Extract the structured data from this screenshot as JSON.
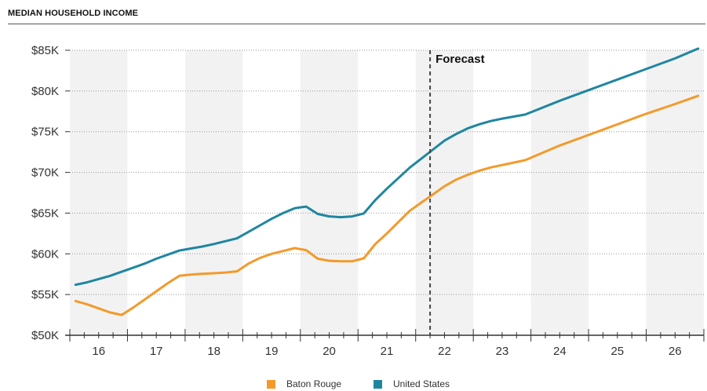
{
  "chart_data": {
    "type": "line",
    "title": "MEDIAN HOUSEHOLD INCOME",
    "x_ticks": [
      "16",
      "17",
      "18",
      "19",
      "20",
      "21",
      "22",
      "23",
      "24",
      "25",
      "26"
    ],
    "y_ticks": [
      "$50K",
      "$55K",
      "$60K",
      "$65K",
      "$70K",
      "$75K",
      "$80K",
      "$85K"
    ],
    "xlim": [
      15.5,
      26.5
    ],
    "ylim": [
      50000,
      85000
    ],
    "grid": "horizontal dotted, alternating vertical year bands",
    "annotation": {
      "label": "Forecast",
      "x": 21.75
    },
    "legend_position": "bottom",
    "series": [
      {
        "name": "Baton Rouge",
        "color": "#f39a2b",
        "points": [
          [
            15.6,
            54200
          ],
          [
            15.8,
            53800
          ],
          [
            16.0,
            53300
          ],
          [
            16.2,
            52800
          ],
          [
            16.4,
            52500
          ],
          [
            16.6,
            53400
          ],
          [
            16.8,
            54400
          ],
          [
            17.0,
            55400
          ],
          [
            17.2,
            56400
          ],
          [
            17.4,
            57300
          ],
          [
            17.6,
            57450
          ],
          [
            17.8,
            57550
          ],
          [
            18.0,
            57620
          ],
          [
            18.2,
            57700
          ],
          [
            18.4,
            57850
          ],
          [
            18.6,
            58800
          ],
          [
            18.8,
            59500
          ],
          [
            19.0,
            60000
          ],
          [
            19.2,
            60350
          ],
          [
            19.4,
            60700
          ],
          [
            19.6,
            60450
          ],
          [
            19.8,
            59400
          ],
          [
            20.0,
            59150
          ],
          [
            20.2,
            59080
          ],
          [
            20.4,
            59080
          ],
          [
            20.6,
            59450
          ],
          [
            20.8,
            61200
          ],
          [
            21.0,
            62500
          ],
          [
            21.2,
            63900
          ],
          [
            21.4,
            65300
          ],
          [
            21.6,
            66300
          ],
          [
            21.8,
            67300
          ],
          [
            22.0,
            68300
          ],
          [
            22.2,
            69100
          ],
          [
            22.4,
            69700
          ],
          [
            22.6,
            70200
          ],
          [
            22.8,
            70600
          ],
          [
            23.0,
            70900
          ],
          [
            23.2,
            71200
          ],
          [
            23.4,
            71500
          ],
          [
            24.0,
            73300
          ],
          [
            24.5,
            74600
          ],
          [
            25.0,
            75900
          ],
          [
            25.5,
            77200
          ],
          [
            26.0,
            78400
          ],
          [
            26.4,
            79400
          ]
        ]
      },
      {
        "name": "United States",
        "color": "#1f86a0",
        "points": [
          [
            15.6,
            56200
          ],
          [
            15.8,
            56500
          ],
          [
            16.0,
            56900
          ],
          [
            16.2,
            57300
          ],
          [
            16.4,
            57800
          ],
          [
            16.6,
            58300
          ],
          [
            16.8,
            58800
          ],
          [
            17.0,
            59400
          ],
          [
            17.2,
            59900
          ],
          [
            17.4,
            60400
          ],
          [
            17.6,
            60650
          ],
          [
            17.8,
            60900
          ],
          [
            18.0,
            61200
          ],
          [
            18.2,
            61550
          ],
          [
            18.4,
            61900
          ],
          [
            18.6,
            62700
          ],
          [
            18.8,
            63500
          ],
          [
            19.0,
            64300
          ],
          [
            19.2,
            65000
          ],
          [
            19.4,
            65600
          ],
          [
            19.6,
            65800
          ],
          [
            19.8,
            64900
          ],
          [
            20.0,
            64600
          ],
          [
            20.2,
            64500
          ],
          [
            20.4,
            64600
          ],
          [
            20.6,
            64950
          ],
          [
            20.8,
            66600
          ],
          [
            21.0,
            68000
          ],
          [
            21.2,
            69300
          ],
          [
            21.4,
            70600
          ],
          [
            21.6,
            71700
          ],
          [
            21.8,
            72800
          ],
          [
            22.0,
            73900
          ],
          [
            22.2,
            74700
          ],
          [
            22.4,
            75400
          ],
          [
            22.6,
            75900
          ],
          [
            22.8,
            76300
          ],
          [
            23.0,
            76600
          ],
          [
            23.2,
            76850
          ],
          [
            23.4,
            77100
          ],
          [
            24.0,
            78800
          ],
          [
            24.5,
            80100
          ],
          [
            25.0,
            81400
          ],
          [
            25.5,
            82700
          ],
          [
            26.0,
            84000
          ],
          [
            26.4,
            85200
          ]
        ]
      }
    ]
  }
}
